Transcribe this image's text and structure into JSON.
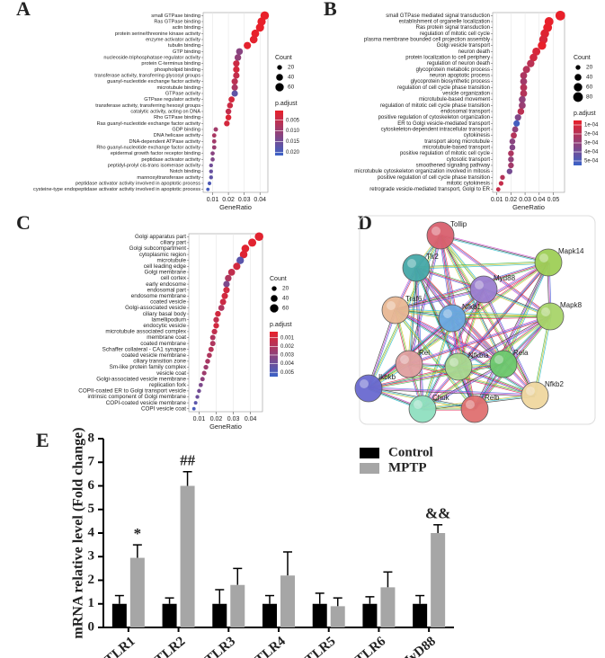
{
  "chart_data": [
    {
      "type": "dot",
      "label": "A",
      "x_label": "GeneRatio",
      "categories": [
        "small GTPase binding",
        "Ras GTPase binding",
        "actin binding",
        "protein serine/threonine kinase activity",
        "enzyme activator activity",
        "tubulin binding",
        "GTP binding",
        "nucleoside-triphosphatase regulator activity",
        "protein C-terminus binding",
        "phospholipid binding",
        "transferase activity, transferring glycosyl groups",
        "guanyl-nucleotide exchange factor activity",
        "microtubule binding",
        "GTPase activity",
        "GTPase regulator activity",
        "transferase activity, transferring hexosyl groups",
        "catalytic activity, acting on DNA",
        "Rho GTPase binding",
        "Ras guanyl-nucleotide exchange factor activity",
        "GDP binding",
        "DNA helicase activity",
        "DNA-dependent ATPase activity",
        "Rho guanyl-nucleotide exchange factor activity",
        "epidermal growth factor receptor binding",
        "peptidase activator activity",
        "peptidyl-prolyl cis-trans isomerase activity",
        "Notch binding",
        "mannosyltransferase activity",
        "peptidase activator activity involved in apoptotic process",
        "cysteine-type endopeptidase activator activity involved in apoptotic process"
      ],
      "values": [
        0.043,
        0.041,
        0.04,
        0.037,
        0.036,
        0.032,
        0.027,
        0.026,
        0.025,
        0.025,
        0.025,
        0.024,
        0.024,
        0.024,
        0.022,
        0.021,
        0.02,
        0.02,
        0.019,
        0.012,
        0.011,
        0.011,
        0.011,
        0.01,
        0.01,
        0.009,
        0.009,
        0.009,
        0.008,
        0.007
      ],
      "count": [
        62,
        59,
        58,
        54,
        52,
        46,
        39,
        38,
        36,
        36,
        36,
        35,
        35,
        35,
        32,
        30,
        29,
        29,
        28,
        17,
        16,
        16,
        16,
        15,
        15,
        13,
        13,
        13,
        12,
        10
      ],
      "p_adjust": [
        0.0005,
        0.0005,
        0.0005,
        0.0005,
        0.001,
        0.001,
        0.012,
        0.011,
        0.004,
        0.003,
        0.005,
        0.006,
        0.008,
        0.017,
        0.003,
        0.004,
        0.005,
        0.002,
        0.003,
        0.009,
        0.008,
        0.009,
        0.01,
        0.012,
        0.013,
        0.015,
        0.016,
        0.017,
        0.019,
        0.02
      ],
      "xlim": [
        0.004,
        0.045
      ],
      "xticks": [
        0.01,
        0.02,
        0.03,
        0.04
      ],
      "grid": true,
      "size_legend": {
        "title": "Count",
        "values": [
          20,
          40,
          60
        ]
      },
      "color_legend": {
        "title": "p.adjust",
        "lim": [
          0.0005,
          0.0215
        ],
        "colors": [
          "#e8202a",
          "#3a62c8"
        ],
        "ticks": [
          0.005,
          {
            "value": 0.01,
            "label": "0.010"
          },
          0.015,
          {
            "value": 0.02,
            "label": "0.020"
          }
        ]
      }
    },
    {
      "type": "dot",
      "label": "B",
      "x_label": "GeneRatio",
      "categories": [
        "small GTPase mediated signal transduction",
        "establishment of organelle localization",
        "Ras protein signal transduction",
        "regulation of mitotic cell cycle",
        "plasma membrane bounded cell projection assembly",
        "Golgi vesicle transport",
        "neuron death",
        "protein localization to cell periphery",
        "regulation of neuron death",
        "glycoprotein metabolic process",
        "neuron apoptotic process",
        "glycoprotein biosynthetic process",
        "regulation of cell cycle phase transition",
        "vesicle organization",
        "microtubule-based movement",
        "regulation of mitotic cell cycle phase transition",
        "endosomal transport",
        "positive regulation of cytoskeleton organization",
        "ER to Golgi vesicle-mediated transport",
        "cytoskeleton-dependent intracellular transport",
        "cytokinesis",
        "transport along microtubule",
        "microtubule-based transport",
        "positive regulation of mitotic cell cycle",
        "cytosolic transport",
        "smoothened signaling pathway",
        "microtubule cytoskeleton organization involved in mitosis",
        "positive regulation of cell cycle phase transition",
        "mitotic cytokinesis",
        "retrograde vesicle-mediated transport, Golgi to ER"
      ],
      "values": [
        0.055,
        0.047,
        0.046,
        0.044,
        0.043,
        0.042,
        0.038,
        0.036,
        0.034,
        0.031,
        0.029,
        0.029,
        0.029,
        0.029,
        0.028,
        0.028,
        0.027,
        0.025,
        0.024,
        0.023,
        0.022,
        0.021,
        0.021,
        0.02,
        0.02,
        0.02,
        0.019,
        0.014,
        0.013,
        0.011
      ],
      "count": [
        80,
        68,
        67,
        64,
        62,
        61,
        55,
        52,
        49,
        45,
        42,
        42,
        42,
        42,
        41,
        41,
        39,
        36,
        35,
        33,
        32,
        30,
        30,
        29,
        29,
        29,
        28,
        20,
        19,
        16
      ],
      "p_adjust": [
        5e-05,
        5e-05,
        5e-05,
        8e-05,
        0.0001,
        5e-05,
        0.0001,
        0.00012,
        0.00018,
        0.0002,
        0.00022,
        0.00025,
        0.0002,
        0.0002,
        0.0003,
        0.00028,
        0.00018,
        0.00035,
        0.00052,
        0.0003,
        0.0002,
        0.00032,
        0.00034,
        0.00022,
        0.0003,
        0.00025,
        0.00038,
        0.0002,
        0.00015,
        0.00015
      ],
      "xlim": [
        0.007,
        0.058
      ],
      "xticks": [
        0.01,
        0.02,
        0.03,
        0.04,
        0.05
      ],
      "grid": true,
      "size_legend": {
        "title": "Count",
        "values": [
          20,
          40,
          60,
          80
        ]
      },
      "color_legend": {
        "title": "p.adjust",
        "lim": [
          5e-05,
          0.00055
        ],
        "colors": [
          "#e8202a",
          "#3a62c8"
        ],
        "ticks": [
          {
            "value": 0.0001,
            "label": "1e-04"
          },
          {
            "value": 0.0002,
            "label": "2e-04"
          },
          {
            "value": 0.0003,
            "label": "3e-04"
          },
          {
            "value": 0.0004,
            "label": "4e-04"
          },
          {
            "value": 0.0005,
            "label": "5e-04"
          }
        ]
      }
    },
    {
      "type": "dot",
      "label": "C",
      "x_label": "GeneRatio",
      "categories": [
        "Golgi apparatus part",
        "ciliary part",
        "Golgi subcompartment",
        "cytoplasmic region",
        "microtubule",
        "cell leading edge",
        "Golgi membrane",
        "cell cortex",
        "early endosome",
        "endosomal part",
        "endosome membrane",
        "coated vesicle",
        "Golgi-associated vesicle",
        "ciliary basal body",
        "lamellipodium",
        "endocytic vesicle",
        "microtubule associated complex",
        "membrane coat",
        "coated membrane",
        "Schaffer collateral - CA1 synapse",
        "coated vesicle membrane",
        "ciliary transition zone",
        "Sm-like protein family complex",
        "vesicle coat",
        "Golgi-associated vesicle membrane",
        "replication fork",
        "COPII-coated ER to Golgi transport vesicle",
        "intrinsic component of Golgi membrane",
        "COPI-coated vesicle membrane",
        "COPI vesicle coat"
      ],
      "values": [
        0.045,
        0.041,
        0.037,
        0.036,
        0.034,
        0.032,
        0.029,
        0.027,
        0.026,
        0.026,
        0.025,
        0.024,
        0.023,
        0.021,
        0.02,
        0.02,
        0.019,
        0.018,
        0.018,
        0.017,
        0.016,
        0.015,
        0.014,
        0.013,
        0.012,
        0.011,
        0.01,
        0.009,
        0.008,
        0.007
      ],
      "count": [
        63,
        57,
        52,
        50,
        48,
        45,
        41,
        38,
        36,
        36,
        35,
        34,
        32,
        29,
        28,
        28,
        27,
        25,
        25,
        24,
        22,
        21,
        20,
        18,
        17,
        15,
        14,
        13,
        11,
        10
      ],
      "p_adjust": [
        0.0005,
        0.0005,
        0.0005,
        0.0006,
        0.0045,
        0.001,
        0.0015,
        0.002,
        0.0035,
        0.001,
        0.001,
        0.0012,
        0.002,
        0.001,
        0.0015,
        0.001,
        0.0015,
        0.002,
        0.002,
        0.0018,
        0.002,
        0.0022,
        0.0025,
        0.0025,
        0.003,
        0.0035,
        0.0038,
        0.004,
        0.0045,
        0.005
      ],
      "xlim": [
        0.004,
        0.047
      ],
      "xticks": [
        0.01,
        0.02,
        0.03,
        0.04
      ],
      "grid": true,
      "size_legend": {
        "title": "Count",
        "values": [
          20,
          40,
          60
        ]
      },
      "color_legend": {
        "title": "p.adjust",
        "lim": [
          0.0003,
          0.0055
        ],
        "colors": [
          "#e8202a",
          "#3a62c8"
        ],
        "ticks": [
          0.001,
          0.002,
          0.003,
          0.004,
          0.005
        ]
      }
    },
    {
      "type": "bar",
      "label": "E",
      "y_label": "mRNA relative level (Fold change)",
      "categories": [
        "TLR1",
        "TLR2",
        "TLR3",
        "TLR4",
        "TLR5",
        "TLR6",
        "MyD88"
      ],
      "series": [
        {
          "name": "Control",
          "color": "#000000",
          "values": [
            1,
            1,
            1,
            1,
            1,
            1,
            1
          ],
          "errors": [
            0.35,
            0.25,
            0.6,
            0.35,
            0.45,
            0.3,
            0.35
          ]
        },
        {
          "name": "MPTP",
          "color": "#a6a6a6",
          "values": [
            2.95,
            6.0,
            1.8,
            2.2,
            0.9,
            1.7,
            4.0
          ],
          "errors": [
            0.55,
            0.6,
            0.7,
            1.0,
            0.35,
            0.65,
            0.35
          ],
          "annotations": [
            "*",
            "##",
            null,
            null,
            null,
            null,
            "&&"
          ]
        }
      ],
      "ylim": [
        0,
        8
      ],
      "yticks": [
        0,
        1,
        2,
        3,
        4,
        5,
        6,
        7,
        8
      ],
      "legend": "upper right"
    }
  ],
  "network": {
    "label": "D",
    "nodes": [
      "Tollip",
      "Mapk14",
      "Tlr2",
      "Myd88",
      "Traf6",
      "Nfkb1",
      "Mapk8",
      "Rel",
      "Nfkbia",
      "Rela",
      "Ikbkb",
      "Nfkb2",
      "Chuk",
      "Relb"
    ]
  }
}
